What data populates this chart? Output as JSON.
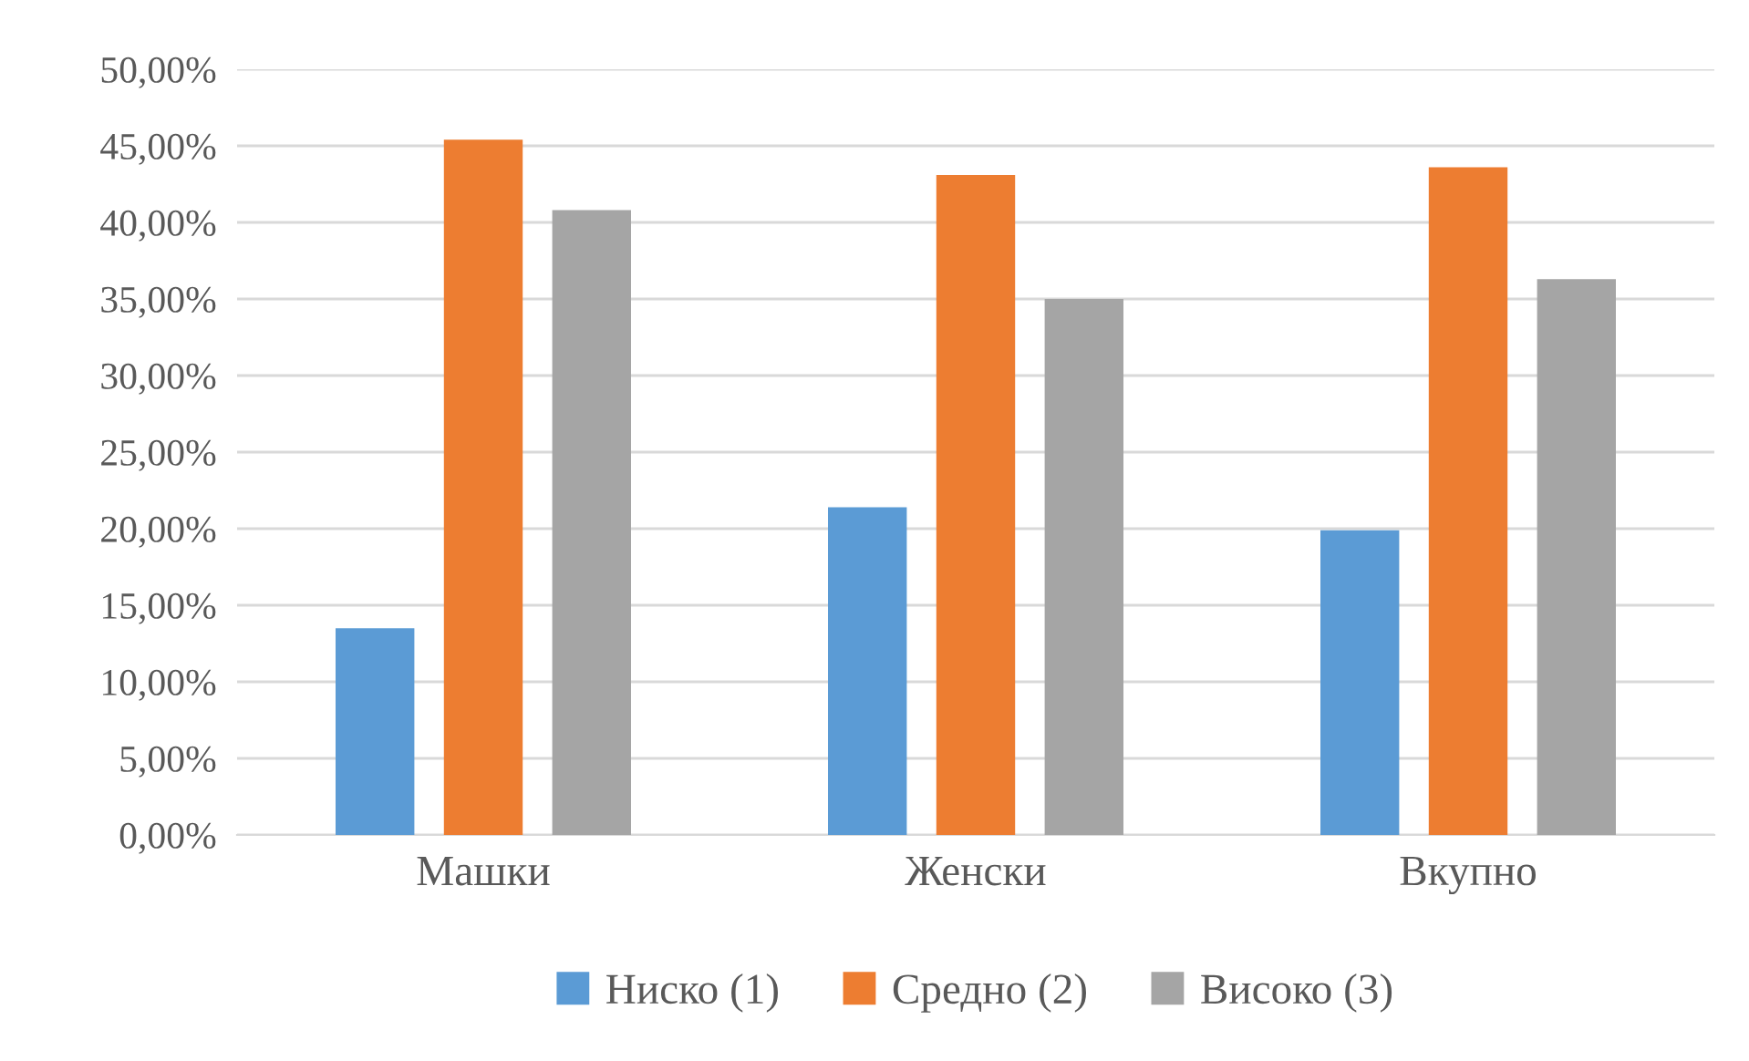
{
  "chart_data": {
    "type": "bar",
    "categories": [
      "Машки",
      "Женски",
      "Вкупно"
    ],
    "series": [
      {
        "name": "Ниско (1)",
        "color": "#5b9bd5",
        "values": [
          13.5,
          21.4,
          19.9
        ]
      },
      {
        "name": "Средно (2)",
        "color": "#ed7d31",
        "values": [
          45.4,
          43.1,
          43.6
        ]
      },
      {
        "name": "Високо (3)",
        "color": "#a5a5a5",
        "values": [
          40.8,
          35.0,
          36.3
        ]
      }
    ],
    "ylim": [
      0,
      50
    ],
    "yticks": [
      {
        "value": 0,
        "label": "0,00%"
      },
      {
        "value": 5,
        "label": "5,00%"
      },
      {
        "value": 10,
        "label": "10,00%"
      },
      {
        "value": 15,
        "label": "15,00%"
      },
      {
        "value": 20,
        "label": "20,00%"
      },
      {
        "value": 25,
        "label": "25,00%"
      },
      {
        "value": 30,
        "label": "30,00%"
      },
      {
        "value": 35,
        "label": "35,00%"
      },
      {
        "value": 40,
        "label": "40,00%"
      },
      {
        "value": 45,
        "label": "45,00%"
      },
      {
        "value": 50,
        "label": "50,00%"
      }
    ],
    "grid": "y",
    "legend": "bottom"
  }
}
